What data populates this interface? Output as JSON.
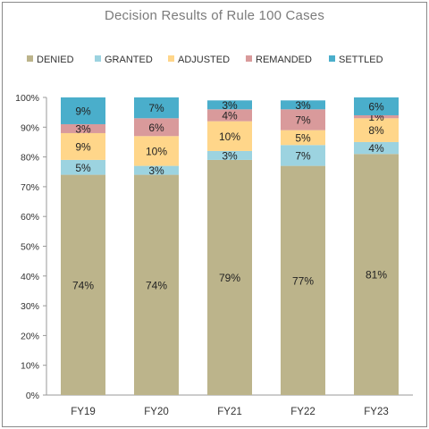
{
  "chart_data": {
    "type": "bar",
    "stacked": true,
    "title": "Decision Results of Rule 100 Cases",
    "categories": [
      "FY19",
      "FY20",
      "FY21",
      "FY22",
      "FY23"
    ],
    "series": [
      {
        "name": "DENIED",
        "color": "#bcb48b",
        "values": [
          74,
          74,
          79,
          77,
          81
        ]
      },
      {
        "name": "GRANTED",
        "color": "#9cd3e0",
        "values": [
          5,
          3,
          3,
          7,
          4
        ]
      },
      {
        "name": "ADJUSTED",
        "color": "#ffd68a",
        "values": [
          9,
          10,
          10,
          5,
          8
        ]
      },
      {
        "name": "REMANDED",
        "color": "#d99a9b",
        "values": [
          3,
          6,
          4,
          7,
          1
        ]
      },
      {
        "name": "SETTLED",
        "color": "#4aaecb",
        "values": [
          9,
          7,
          3,
          3,
          6
        ]
      }
    ],
    "ylim": [
      0,
      100
    ],
    "yticks": [
      "0%",
      "10%",
      "20%",
      "30%",
      "40%",
      "50%",
      "60%",
      "70%",
      "80%",
      "90%",
      "100%"
    ],
    "value_suffix": "%",
    "legend_position": "top",
    "grid": false
  }
}
